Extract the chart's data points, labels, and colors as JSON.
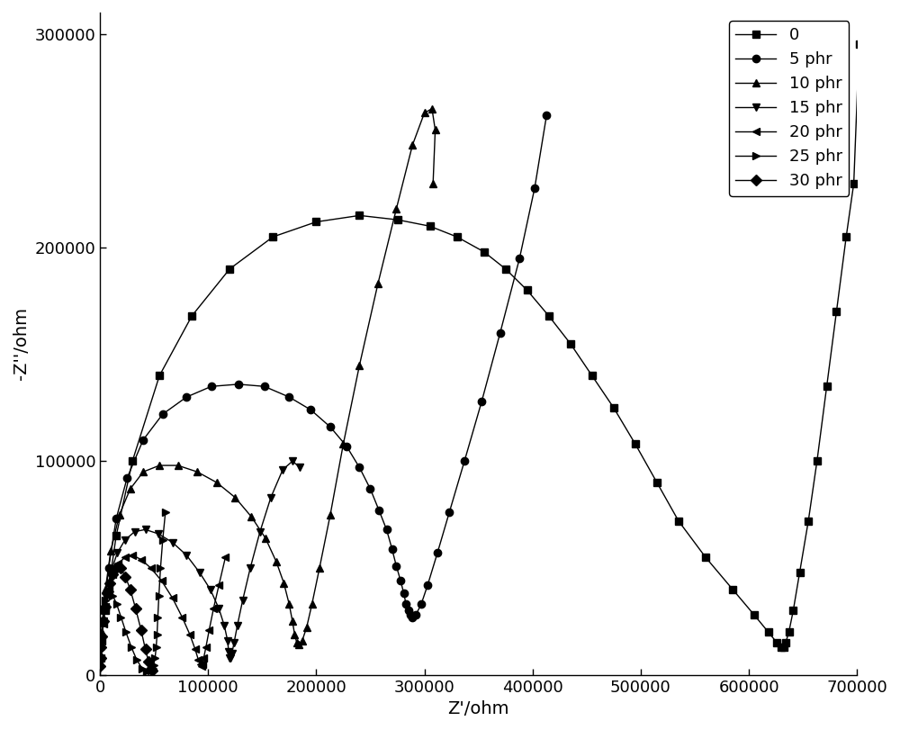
{
  "xlabel": "Z'/ohm",
  "ylabel": "-Z''/ohm",
  "xlim": [
    0,
    700000
  ],
  "ylim": [
    0,
    310000
  ],
  "xticks": [
    0,
    100000,
    200000,
    300000,
    400000,
    500000,
    600000,
    700000
  ],
  "yticks": [
    0,
    100000,
    200000,
    300000
  ],
  "xtick_labels": [
    "0",
    "100000",
    "200000",
    "300000",
    "400000",
    "500000",
    "600000",
    "700000"
  ],
  "ytick_labels": [
    "0",
    "100000",
    "200000",
    "300000"
  ],
  "series": [
    {
      "label": "0",
      "marker": "s",
      "markersize": 6,
      "linewidth": 1.0,
      "x": [
        5000,
        15000,
        30000,
        55000,
        85000,
        120000,
        160000,
        200000,
        240000,
        275000,
        305000,
        330000,
        355000,
        375000,
        395000,
        415000,
        435000,
        455000,
        475000,
        495000,
        515000,
        535000,
        560000,
        585000,
        605000,
        618000,
        626000,
        630000,
        632000,
        634000,
        637000,
        641000,
        647000,
        655000,
        663000,
        672000,
        681000,
        690000,
        697000,
        702000
      ],
      "y": [
        30000,
        65000,
        100000,
        140000,
        168000,
        190000,
        205000,
        212000,
        215000,
        213000,
        210000,
        205000,
        198000,
        190000,
        180000,
        168000,
        155000,
        140000,
        125000,
        108000,
        90000,
        72000,
        55000,
        40000,
        28000,
        20000,
        15000,
        13000,
        13000,
        15000,
        20000,
        30000,
        48000,
        72000,
        100000,
        135000,
        170000,
        205000,
        230000,
        295000
      ]
    },
    {
      "label": "5 phr",
      "marker": "o",
      "markersize": 6,
      "linewidth": 1.0,
      "x": [
        3000,
        8000,
        15000,
        25000,
        40000,
        58000,
        80000,
        103000,
        128000,
        152000,
        175000,
        195000,
        213000,
        228000,
        240000,
        250000,
        258000,
        265000,
        270000,
        274000,
        278000,
        281000,
        283000,
        285000,
        287000,
        289000,
        292000,
        297000,
        303000,
        312000,
        323000,
        337000,
        353000,
        370000,
        388000,
        402000,
        413000
      ],
      "y": [
        25000,
        50000,
        73000,
        92000,
        110000,
        122000,
        130000,
        135000,
        136000,
        135000,
        130000,
        124000,
        116000,
        107000,
        97000,
        87000,
        77000,
        68000,
        59000,
        51000,
        44000,
        38000,
        33000,
        30000,
        28000,
        27000,
        28000,
        33000,
        42000,
        57000,
        76000,
        100000,
        128000,
        160000,
        195000,
        228000,
        262000
      ]
    },
    {
      "label": "10 phr",
      "marker": "^",
      "markersize": 6,
      "linewidth": 1.0,
      "x": [
        2000,
        5000,
        10000,
        18000,
        28000,
        40000,
        55000,
        72000,
        90000,
        108000,
        125000,
        140000,
        153000,
        163000,
        170000,
        175000,
        178000,
        180000,
        182000,
        184000,
        187000,
        191000,
        196000,
        203000,
        213000,
        225000,
        240000,
        257000,
        274000,
        289000,
        300000,
        307000,
        310000,
        308000
      ],
      "y": [
        20000,
        40000,
        58000,
        75000,
        87000,
        95000,
        98000,
        98000,
        95000,
        90000,
        83000,
        74000,
        64000,
        53000,
        43000,
        33000,
        25000,
        19000,
        15000,
        14000,
        16000,
        22000,
        33000,
        50000,
        75000,
        108000,
        145000,
        183000,
        218000,
        248000,
        263000,
        265000,
        255000,
        230000
      ]
    },
    {
      "label": "15 phr",
      "marker": "v",
      "markersize": 6,
      "linewidth": 1.0,
      "x": [
        1000,
        3000,
        6000,
        10000,
        16000,
        23000,
        32000,
        42000,
        54000,
        67000,
        80000,
        92000,
        102000,
        110000,
        115000,
        118000,
        119000,
        120000,
        121000,
        122000,
        124000,
        127000,
        132000,
        139000,
        148000,
        158000,
        169000,
        178000,
        185000
      ],
      "y": [
        12000,
        25000,
        37000,
        48000,
        57000,
        63000,
        67000,
        68000,
        66000,
        62000,
        56000,
        48000,
        40000,
        31000,
        23000,
        16000,
        11000,
        8000,
        8000,
        10000,
        15000,
        23000,
        35000,
        50000,
        67000,
        83000,
        96000,
        100000,
        97000
      ]
    },
    {
      "label": "20 phr",
      "marker": "<",
      "markersize": 6,
      "linewidth": 1.0,
      "x": [
        500,
        1500,
        3000,
        5000,
        8000,
        12000,
        17000,
        23000,
        30000,
        38000,
        47000,
        57000,
        67000,
        76000,
        83000,
        88000,
        91000,
        93000,
        94000,
        95000,
        96000,
        98000,
        101000,
        105000,
        110000,
        116000
      ],
      "y": [
        8000,
        16000,
        24000,
        32000,
        40000,
        47000,
        52000,
        55000,
        56000,
        54000,
        50000,
        44000,
        36000,
        27000,
        19000,
        12000,
        7000,
        5000,
        4000,
        5000,
        8000,
        13000,
        21000,
        31000,
        42000,
        55000
      ]
    },
    {
      "label": "25 phr",
      "marker": ">",
      "markersize": 6,
      "linewidth": 1.0,
      "x": [
        200,
        600,
        1200,
        2000,
        3200,
        4800,
        6800,
        9200,
        12000,
        15500,
        19500,
        24000,
        29000,
        34000,
        39000,
        43500,
        47000,
        49500,
        51000,
        52000,
        52800,
        53500,
        54500,
        56000,
        58000,
        60500
      ],
      "y": [
        6000,
        12000,
        18000,
        24000,
        30000,
        35000,
        38000,
        39000,
        37000,
        33000,
        27000,
        20000,
        13000,
        7000,
        3000,
        1500,
        2000,
        4500,
        8000,
        13000,
        19000,
        27000,
        37000,
        50000,
        63000,
        76000
      ]
    },
    {
      "label": "30 phr",
      "marker": "D",
      "markersize": 6,
      "linewidth": 1.0,
      "x": [
        200,
        600,
        1200,
        2000,
        3200,
        4800,
        6800,
        9200,
        12000,
        15000,
        19000,
        23500,
        28000,
        33000,
        38000,
        42000,
        45000,
        47000,
        48000
      ],
      "y": [
        4000,
        8000,
        13000,
        18000,
        25000,
        32000,
        38000,
        43000,
        47000,
        50000,
        50000,
        46000,
        40000,
        31000,
        21000,
        12000,
        6000,
        3000,
        2000
      ]
    }
  ],
  "background_color": "#ffffff",
  "legend_loc": "upper right",
  "legend_fontsize": 13,
  "tick_fontsize": 13,
  "label_fontsize": 14
}
